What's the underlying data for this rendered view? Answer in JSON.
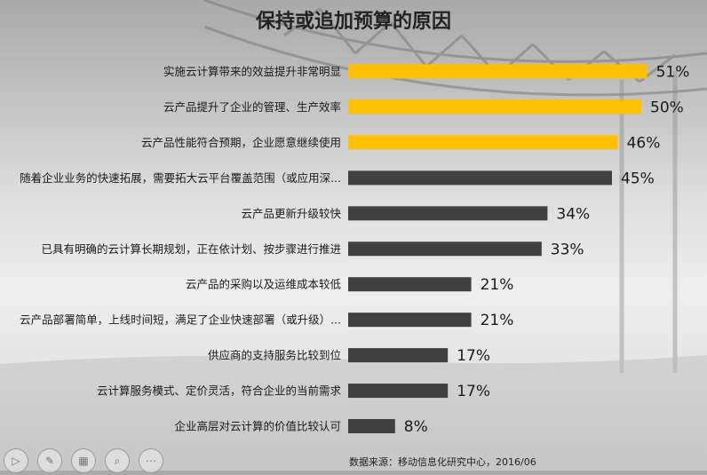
{
  "chart_data": {
    "type": "bar",
    "orientation": "horizontal",
    "title": "保持或追加预算的原因",
    "categories": [
      "实施云计算带来的效益提升非常明显",
      "云产品提升了企业的管理、生产效率",
      "云产品性能符合预期，企业愿意继续使用",
      "随着企业业务的快速拓展，需要拓大云平台覆盖范围（或应用深...",
      "云产品更新升级较快",
      "已具有明确的云计算长期规划，正在依计划、按步骤进行推进",
      "云产品的采购以及运维成本较低",
      "云产品部署简单，上线时间短，满足了企业快速部署（或升级）...",
      "供应商的支持服务比较到位",
      "云计算服务模式、定价灵活，符合企业的当前需求",
      "企业高层对云计算的价值比较认可"
    ],
    "values": [
      51,
      50,
      46,
      45,
      34,
      33,
      21,
      21,
      17,
      17,
      8
    ],
    "value_labels": [
      "51%",
      "50%",
      "46%",
      "45%",
      "34%",
      "33%",
      "21%",
      "21%",
      "17%",
      "17%",
      "8%"
    ],
    "unit": "%",
    "xlim": [
      0,
      55
    ],
    "highlight_count": 3,
    "colors": {
      "highlight": "#FFC000",
      "normal": "#404040"
    },
    "grid": false,
    "legend": "none"
  },
  "footer": {
    "source": "数据来源：移动信息化研究中心，2016/06"
  },
  "toolbar": {
    "icons": [
      "play-icon",
      "pen-icon",
      "slides-icon",
      "zoom-icon",
      "more-icon"
    ]
  }
}
